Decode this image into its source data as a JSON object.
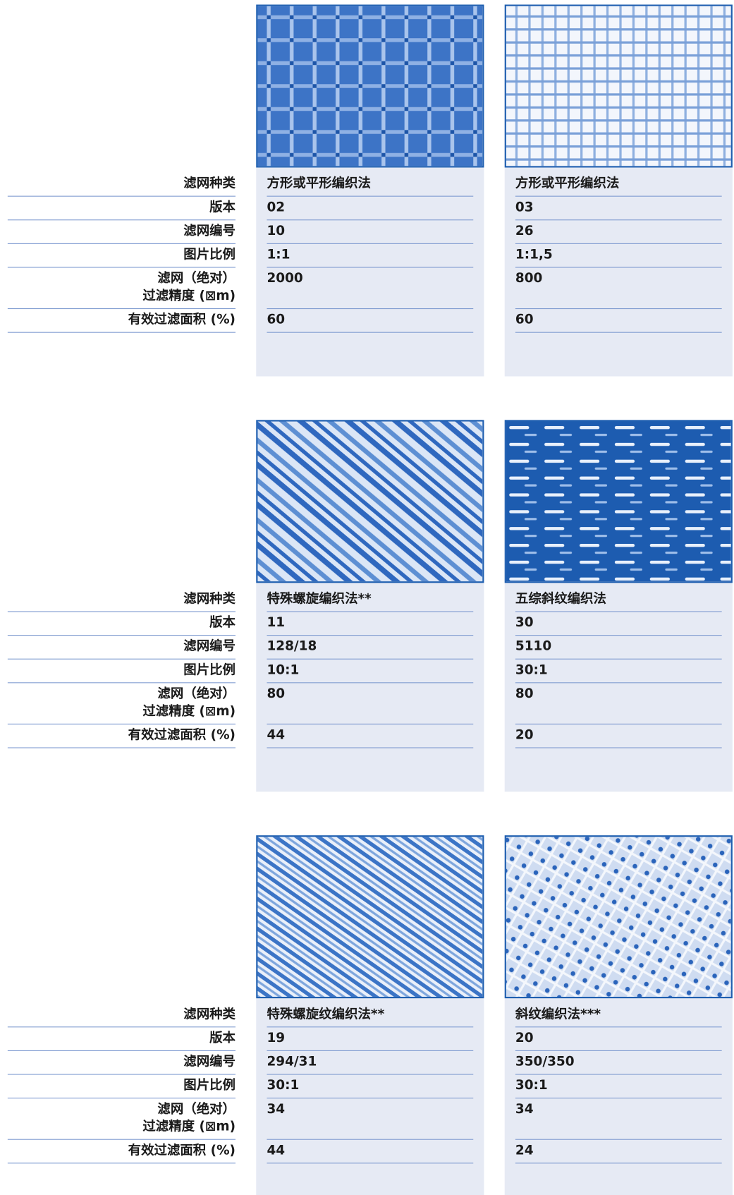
{
  "row_labels": [
    "滤网种类",
    "版本",
    "滤网编号",
    "图片比例",
    "滤网（绝对）\n过滤精度 (⊠m)",
    "有效过滤面积 (%)"
  ],
  "groups": [
    {
      "cards": [
        {
          "weave": "方形或平形编织法",
          "version": "02",
          "number": "10",
          "ratio": "1:1",
          "precision": "2000",
          "open_area": "60"
        },
        {
          "weave": "方形或平形编织法",
          "version": "03",
          "number": "26",
          "ratio": "1:1,5",
          "precision": "800",
          "open_area": "60"
        }
      ]
    },
    {
      "cards": [
        {
          "weave": "特殊螺旋编织法**",
          "version": "11",
          "number": "128/18",
          "ratio": "10:1",
          "precision": "80",
          "open_area": "44"
        },
        {
          "weave": "五综斜纹编织法",
          "version": "30",
          "number": "5110",
          "ratio": "30:1",
          "precision": "80",
          "open_area": "20"
        }
      ]
    },
    {
      "cards": [
        {
          "weave": "特殊螺旋纹编织法**",
          "version": "19",
          "number": "294/31",
          "ratio": "30:1",
          "precision": "34",
          "open_area": "44"
        },
        {
          "weave": "斜纹编织法***",
          "version": "20",
          "number": "350/350",
          "ratio": "30:1",
          "precision": "34",
          "open_area": "24"
        }
      ]
    }
  ]
}
